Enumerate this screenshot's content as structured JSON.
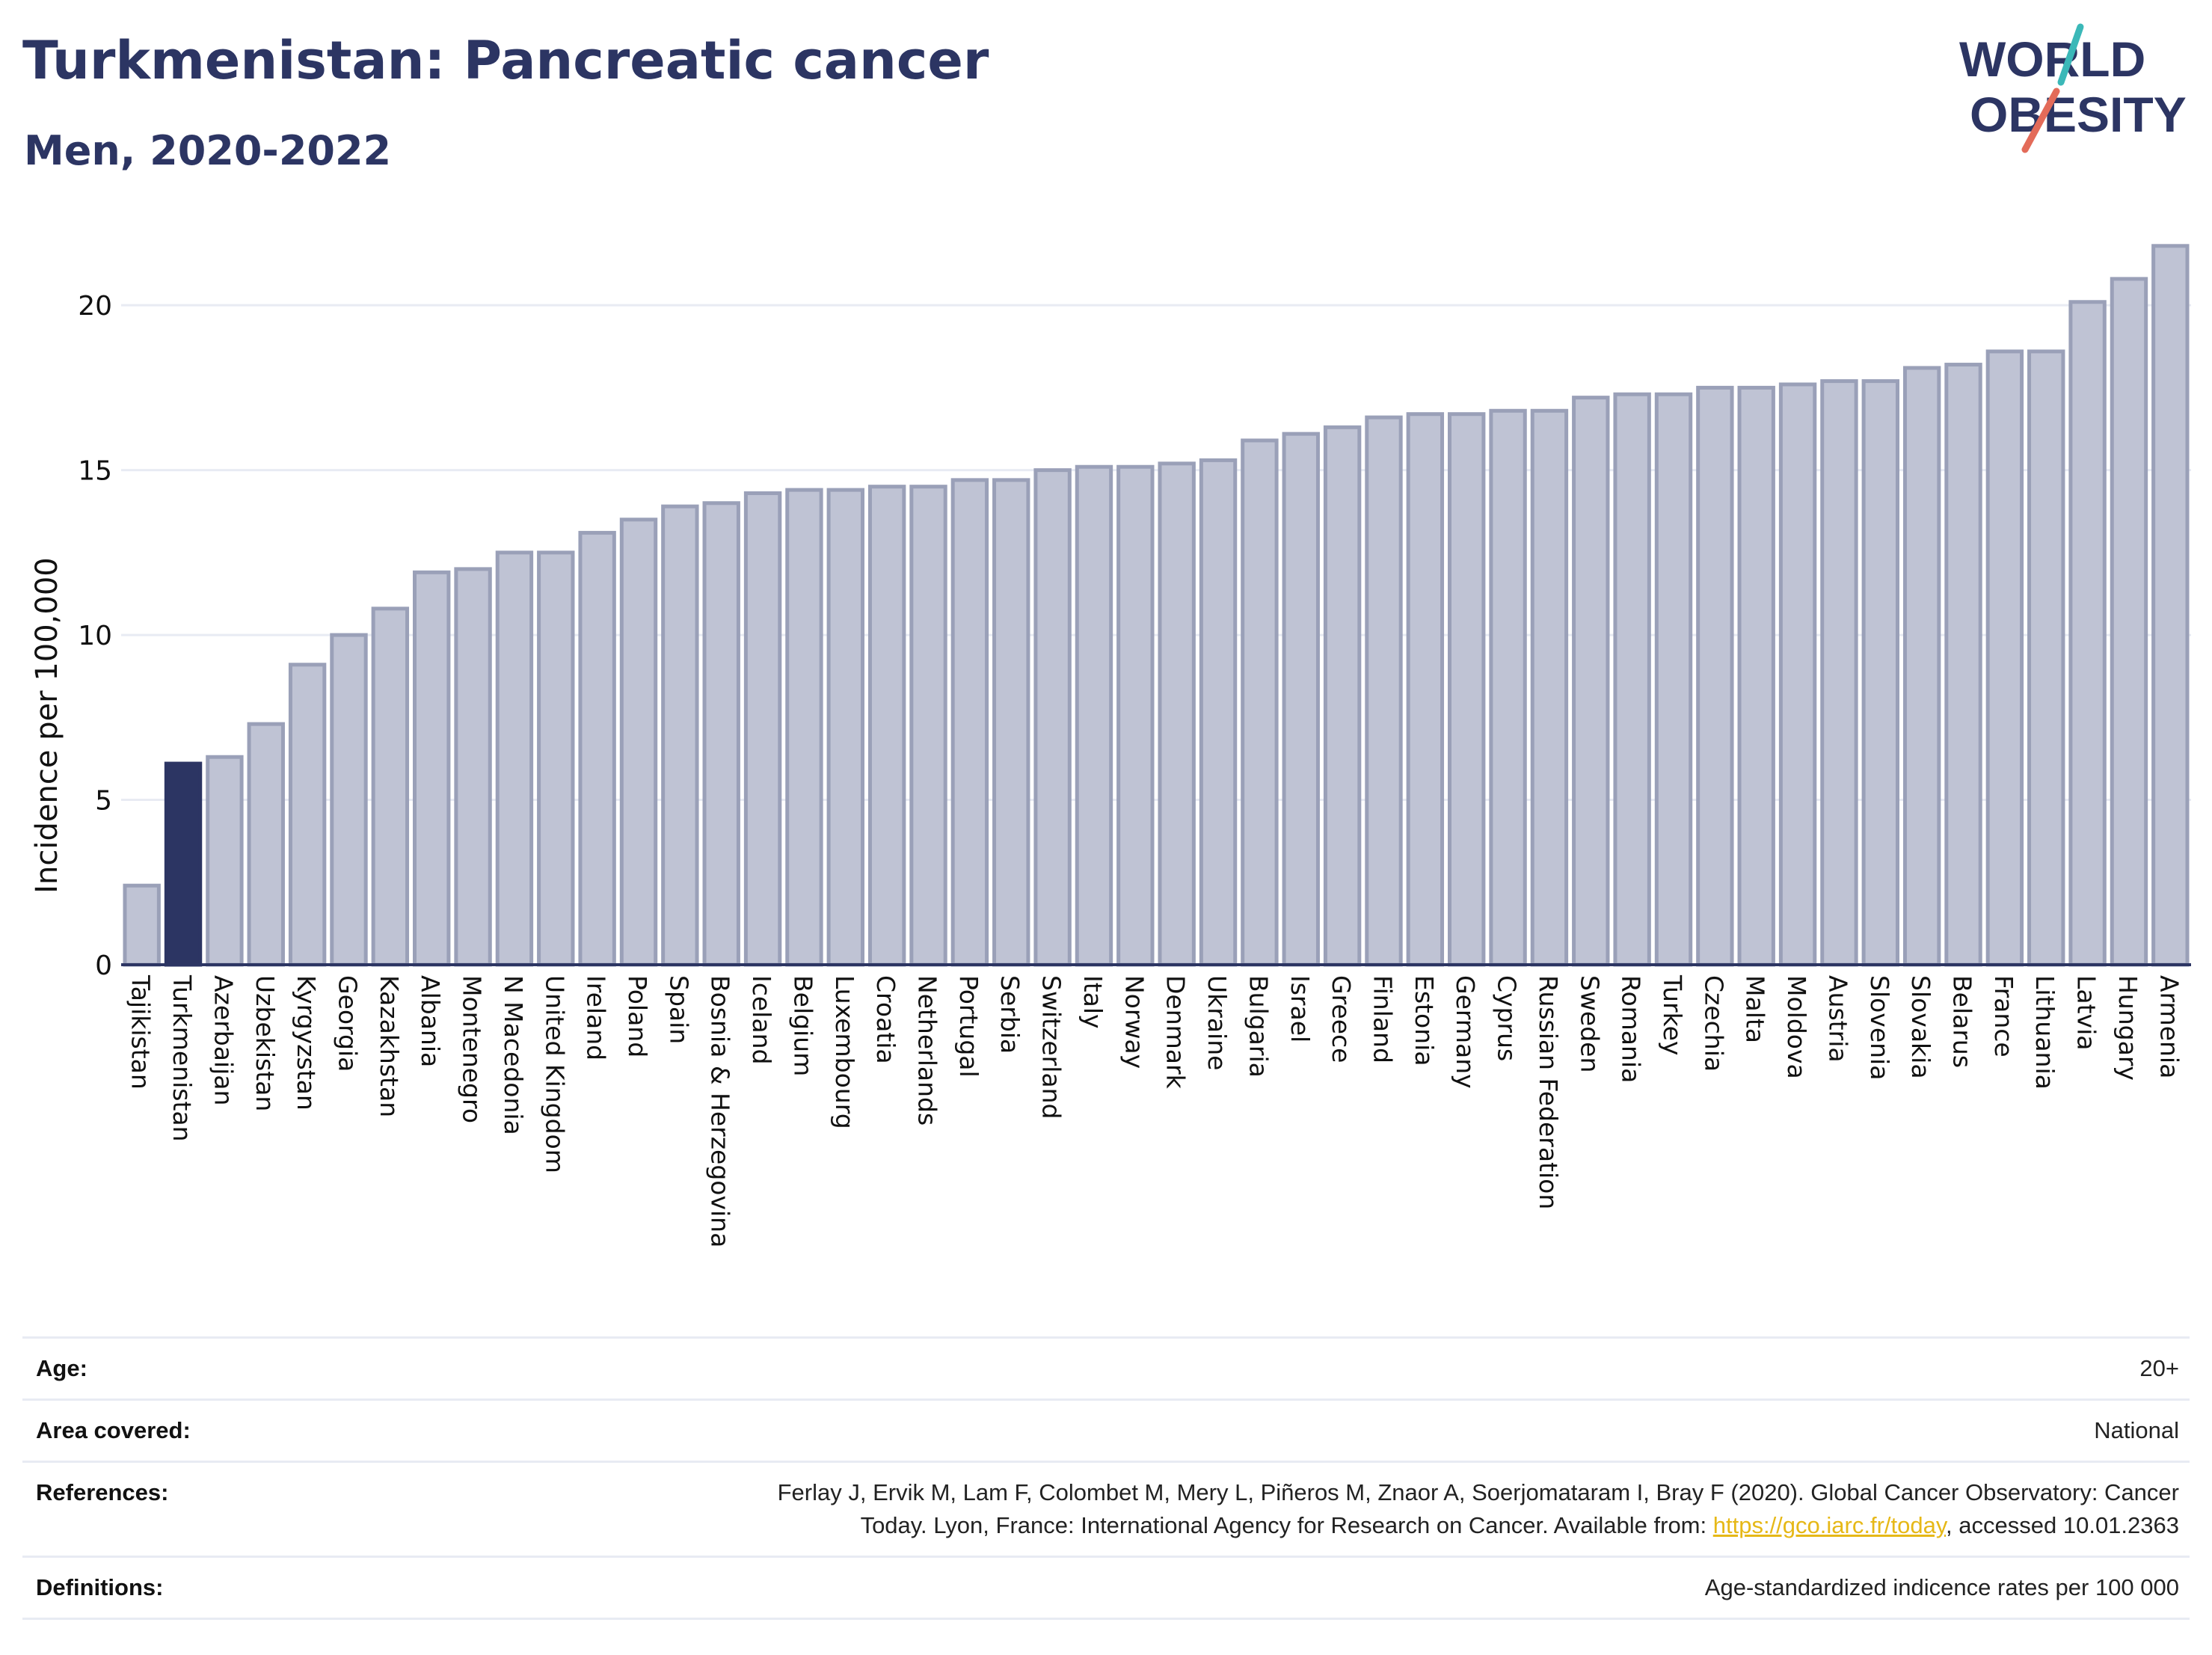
{
  "header": {
    "title": "Turkmenistan: Pancreatic cancer",
    "subtitle": "Men, 2020-2022"
  },
  "logo": {
    "line1": "WORLD",
    "line2": "OBESITY"
  },
  "colors": {
    "highlight": "#2c3563",
    "bar": "#bfc3d4",
    "bar_stroke": "#9aa0b8",
    "grid": "#e8ebf3",
    "logo_teal": "#3bb8b8",
    "logo_red": "#e36b59"
  },
  "chart_data": {
    "type": "bar",
    "ylabel": "Incidence per 100,000",
    "ylim": [
      0,
      22
    ],
    "yticks": [
      0,
      5,
      10,
      15,
      20
    ],
    "highlight": "Turkmenistan",
    "categories": [
      "Tajikistan",
      "Turkmenistan",
      "Azerbaijan",
      "Uzbekistan",
      "Kyrgyzstan",
      "Georgia",
      "Kazakhstan",
      "Albania",
      "Montenegro",
      "N Macedonia",
      "United Kingdom",
      "Ireland",
      "Poland",
      "Spain",
      "Bosnia & Herzegovina",
      "Iceland",
      "Belgium",
      "Luxembourg",
      "Croatia",
      "Netherlands",
      "Portugal",
      "Serbia",
      "Switzerland",
      "Italy",
      "Norway",
      "Denmark",
      "Ukraine",
      "Bulgaria",
      "Israel",
      "Greece",
      "Finland",
      "Estonia",
      "Germany",
      "Cyprus",
      "Russian Federation",
      "Sweden",
      "Romania",
      "Turkey",
      "Czechia",
      "Malta",
      "Moldova",
      "Austria",
      "Slovenia",
      "Slovakia",
      "Belarus",
      "France",
      "Lithuania",
      "Latvia",
      "Hungary",
      "Armenia"
    ],
    "values": [
      2.4,
      6.1,
      6.3,
      7.3,
      9.1,
      10.0,
      10.8,
      11.9,
      12.0,
      12.5,
      12.5,
      13.1,
      13.5,
      13.9,
      14.0,
      14.3,
      14.4,
      14.4,
      14.5,
      14.5,
      14.7,
      14.7,
      15.0,
      15.1,
      15.1,
      15.2,
      15.3,
      15.9,
      16.1,
      16.3,
      16.6,
      16.7,
      16.7,
      16.8,
      16.8,
      17.2,
      17.3,
      17.3,
      17.5,
      17.5,
      17.6,
      17.7,
      17.7,
      18.1,
      18.2,
      18.6,
      18.6,
      20.1,
      20.8,
      21.8
    ]
  },
  "meta": {
    "age_label": "Age:",
    "age_value": "20+",
    "area_label": "Area covered:",
    "area_value": "National",
    "references_label": "References:",
    "references_line1": "Ferlay J, Ervik M, Lam F, Colombet M, Mery L, Piñeros M, Znaor A, Soerjomataram I, Bray F (2020). Global Cancer Observatory: Cancer",
    "references_line2_pre": "Today. Lyon, France: International Agency for Research on Cancer. Available from: ",
    "references_link": "https://gco.iarc.fr/today",
    "references_line2_post": ", accessed 10.01.2363",
    "definitions_label": "Definitions:",
    "definitions_value": "Age-standardized indicence rates per 100 000"
  }
}
